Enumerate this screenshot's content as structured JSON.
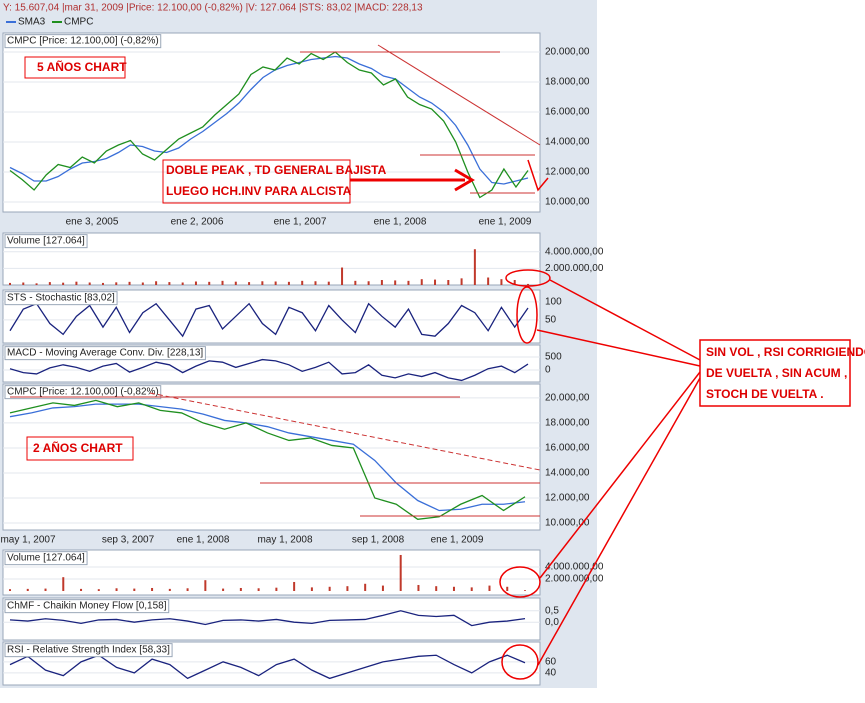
{
  "header": {
    "status": "Y: 15.607,04 |mar 31, 2009 |Price: 12.100,00 (-0,82%) |V: 127.064 |STS: 83,02 |MACD: 228,13"
  },
  "panels": [
    {
      "title": "CMPC [Price: 12.100,00] (-0,82%)",
      "ylim": [
        9333,
        21267
      ],
      "yticks": [
        {
          "value": 10000,
          "label": "10.000,00"
        },
        {
          "value": 12000,
          "label": "12.000,00"
        },
        {
          "value": 14000,
          "label": "14.000,00"
        },
        {
          "value": 16000,
          "label": "16.000,00"
        },
        {
          "value": 18000,
          "label": "18.000,00"
        },
        {
          "value": 20000,
          "label": "20.000,00"
        }
      ],
      "xlabels": [
        "ene 3, 2005",
        "ene 2, 2006",
        "ene 1, 2007",
        "ene 1, 2008",
        "ene 1, 2009"
      ],
      "series": [
        {
          "name": "SMA3",
          "color": "#3a6fd8",
          "style": "line",
          "values": [
            12300,
            11900,
            11400,
            11400,
            11700,
            12200,
            12600,
            12700,
            12900,
            13300,
            13800,
            13700,
            13400,
            13300,
            13600,
            14200,
            14700,
            15300,
            15900,
            16600,
            17500,
            18300,
            18800,
            19100,
            19300,
            19500,
            19600,
            19700,
            19600,
            19200,
            18900,
            18400,
            18200,
            17600,
            17000,
            16600,
            16000,
            15100,
            13800,
            12200,
            11300,
            11200,
            11400,
            11600
          ]
        },
        {
          "name": "CMPC",
          "color": "#1f8f1f",
          "style": "line",
          "values": [
            12100,
            11500,
            10800,
            11800,
            12500,
            12300,
            13000,
            12600,
            13400,
            13800,
            14100,
            13200,
            12800,
            13500,
            14200,
            14600,
            15000,
            15800,
            16500,
            17200,
            18500,
            19000,
            18800,
            19600,
            19200,
            19900,
            19500,
            20000,
            19300,
            18800,
            18600,
            17800,
            18200,
            17000,
            16500,
            16200,
            15400,
            14000,
            12000,
            10300,
            10800,
            12200,
            11000,
            12100
          ]
        }
      ]
    },
    {
      "title": "Volume [127.064]",
      "ylim": [
        0,
        6250000
      ],
      "yticks": [
        {
          "value": 2000000,
          "label": "2.000.000,00"
        },
        {
          "value": 4000000,
          "label": "4.000.000,00"
        }
      ],
      "series": [
        {
          "color": "#c0392b",
          "style": "bar",
          "values": [
            250000,
            300000,
            200000,
            350000,
            280000,
            400000,
            300000,
            250000,
            320000,
            380000,
            300000,
            450000,
            350000,
            300000,
            420000,
            380000,
            500000,
            400000,
            350000,
            450000,
            420000,
            380000,
            500000,
            450000,
            400000,
            2100000,
            500000,
            450000,
            600000,
            550000,
            500000,
            700000,
            650000,
            600000,
            800000,
            4300000,
            900000,
            700000,
            600000,
            127064
          ]
        }
      ]
    },
    {
      "title": "STS - Stochastic [83,02]",
      "ylim": [
        -14,
        133
      ],
      "yticks": [
        50,
        100
      ],
      "series": [
        {
          "color": "#1a237e",
          "style": "line",
          "values": [
            20,
            80,
            95,
            40,
            10,
            60,
            90,
            30,
            85,
            15,
            70,
            95,
            50,
            5,
            80,
            90,
            25,
            60,
            95,
            40,
            10,
            85,
            70,
            20,
            90,
            50,
            15,
            95,
            60,
            30,
            80,
            10,
            5,
            40,
            90,
            70,
            20,
            85,
            30,
            83.02
          ]
        }
      ]
    },
    {
      "title": "MACD - Moving Average Conv. Div. [228,13]",
      "ylim": [
        -460,
        960
      ],
      "yticks": [
        0,
        500
      ],
      "series": [
        {
          "color": "#1a237e",
          "style": "line",
          "values": [
            50,
            -100,
            -150,
            80,
            200,
            100,
            -50,
            150,
            250,
            -80,
            100,
            300,
            200,
            -100,
            150,
            350,
            300,
            100,
            250,
            400,
            350,
            200,
            -50,
            100,
            300,
            -150,
            -100,
            200,
            -200,
            -300,
            -150,
            -250,
            -100,
            -300,
            -400,
            -200,
            50,
            150,
            -100,
            228.13
          ]
        }
      ]
    },
    {
      "title": "CMPC [Price: 12.100,00] (-0,82%)",
      "ylim": [
        9444,
        21111
      ],
      "yticks": [
        {
          "value": 10000,
          "label": "10.000,00"
        },
        {
          "value": 12000,
          "label": "12.000,00"
        },
        {
          "value": 14000,
          "label": "14.000,00"
        },
        {
          "value": 16000,
          "label": "16.000,00"
        },
        {
          "value": 18000,
          "label": "18.000,00"
        },
        {
          "value": 20000,
          "label": "20.000,00"
        }
      ],
      "xlabels": [
        "may 1, 2007",
        "sep 3, 2007",
        "ene 1, 2008",
        "may 1, 2008",
        "sep 1, 2008",
        "ene 1, 2009"
      ],
      "series": [
        {
          "color": "#3a6fd8",
          "style": "line",
          "values": [
            18500,
            18800,
            19200,
            19300,
            19500,
            19500,
            19500,
            19300,
            19100,
            18700,
            18200,
            18000,
            17700,
            17200,
            16900,
            16600,
            16300,
            15000,
            13200,
            11800,
            11000,
            11100,
            11500,
            11500,
            11700
          ]
        },
        {
          "color": "#1f8f1f",
          "style": "line",
          "values": [
            18800,
            19200,
            19600,
            19400,
            19800,
            19300,
            19600,
            19000,
            18800,
            18000,
            17500,
            18000,
            17200,
            16600,
            16800,
            16200,
            16000,
            12000,
            11500,
            10300,
            10500,
            11500,
            12200,
            11000,
            12100
          ]
        }
      ]
    },
    {
      "title": "Volume [127.064]",
      "ylim": [
        -670000,
        6830000
      ],
      "yticks": [
        {
          "value": 2000000,
          "label": "2.000.000,00"
        },
        {
          "value": 4000000,
          "label": "4.000.000,00"
        }
      ],
      "series": [
        {
          "color": "#c0392b",
          "style": "bar",
          "values": [
            300000,
            350000,
            400000,
            2300000,
            350000,
            300000,
            450000,
            400000,
            500000,
            350000,
            450000,
            1800000,
            400000,
            500000,
            450000,
            550000,
            1500000,
            600000,
            700000,
            800000,
            1200000,
            900000,
            6000000,
            1000000,
            800000,
            700000,
            600000,
            900000,
            700000,
            127064
          ]
        }
      ]
    },
    {
      "title": "ChMF - Chaikin Money Flow [0,158]",
      "ylim": [
        -0.78,
        1.06
      ],
      "yticks": [
        {
          "value": 0,
          "label": "0,0"
        },
        {
          "value": 0.5,
          "label": "0,5"
        }
      ],
      "series": [
        {
          "color": "#1a237e",
          "style": "line",
          "values": [
            0.1,
            0.05,
            0.15,
            0.08,
            -0.05,
            0.1,
            0.12,
            0.0,
            0.1,
            0.15,
            0.05,
            -0.1,
            0.08,
            0.1,
            0.05,
            0.12,
            0.0,
            -0.05,
            0.08,
            0.1,
            0.12,
            0.3,
            0.5,
            0.3,
            0.25,
            0.3,
            -0.15,
            0.0,
            0.05,
            0.158
          ]
        }
      ]
    },
    {
      "title": "RSI - Relative Strength Index [58,33]",
      "ylim": [
        18,
        96
      ],
      "yticks": [
        40,
        60
      ],
      "series": [
        {
          "color": "#1a237e",
          "style": "line",
          "values": [
            55,
            70,
            45,
            35,
            60,
            72,
            50,
            40,
            65,
            55,
            30,
            45,
            60,
            50,
            35,
            55,
            65,
            45,
            30,
            40,
            50,
            60,
            65,
            70,
            72,
            55,
            40,
            60,
            72,
            58.33
          ]
        }
      ]
    }
  ],
  "annotations": {
    "five_years": "5 AÑOS CHART",
    "two_years": "2 AÑOS CHART",
    "pattern": [
      "DOBLE PEAK , TD GENERAL BAJISTA",
      "LUEGO HCH.INV PARA ALCISTA"
    ],
    "signals": [
      "SIN VOL , RSI CORRIGIENDO",
      "DE VUELTA , SIN ACUM ,",
      "STOCH DE VUELTA ."
    ]
  }
}
